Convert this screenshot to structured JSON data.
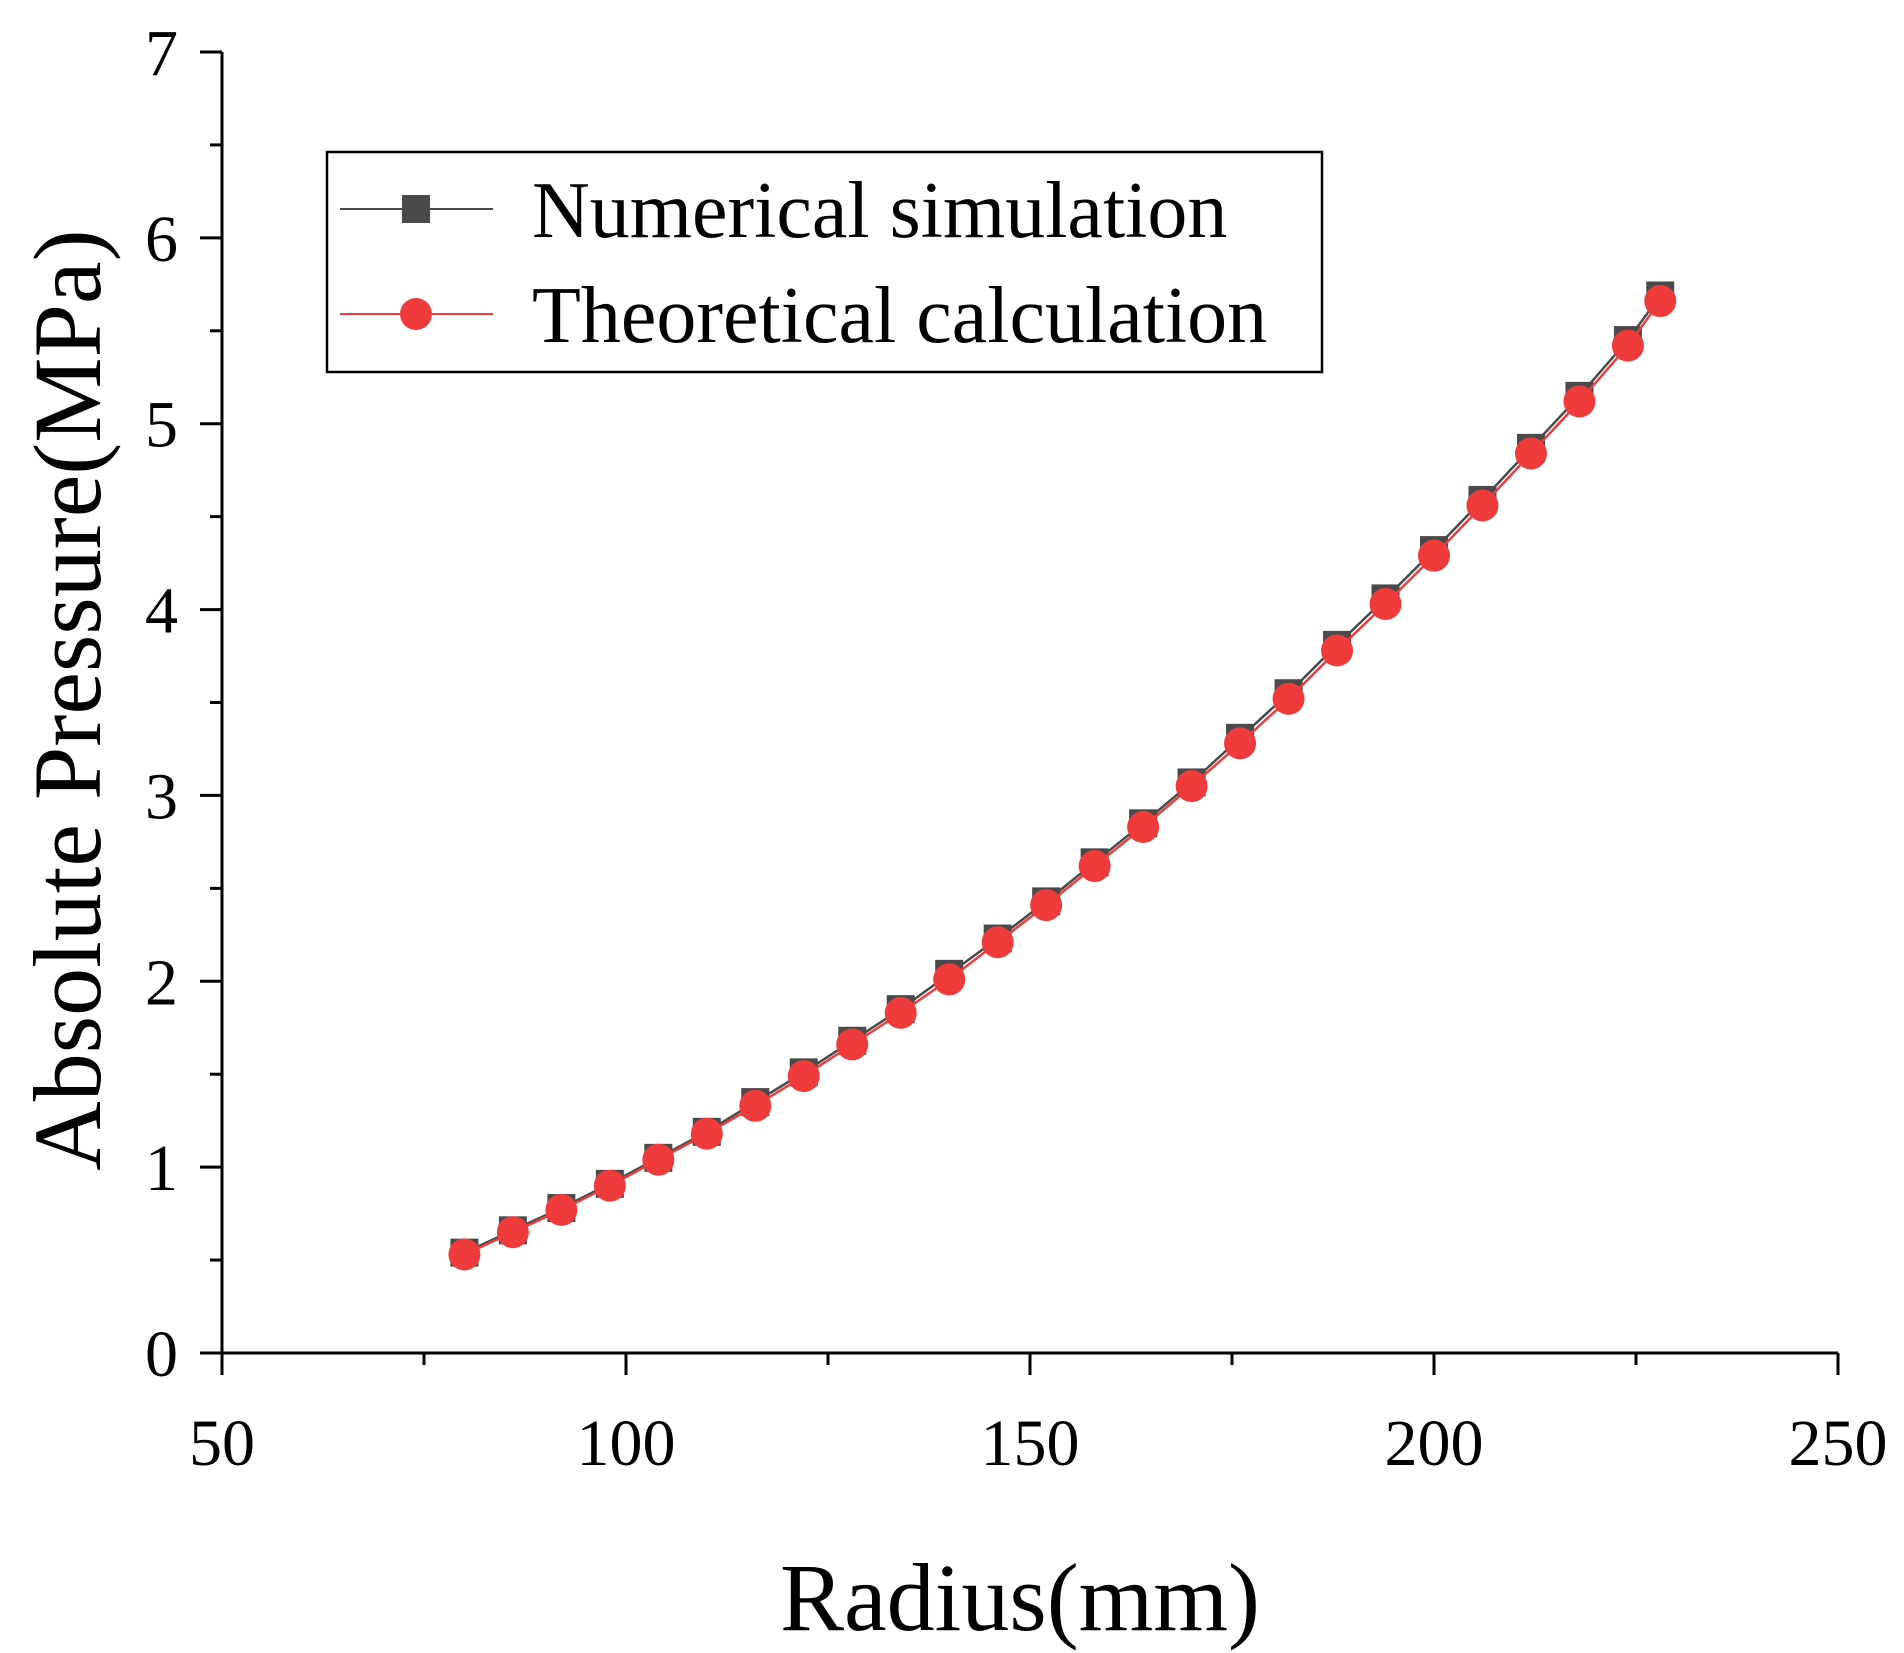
{
  "chart_data": {
    "type": "line",
    "title": "",
    "xlabel": "Radius(mm)",
    "ylabel": "Absolute Pressure(MPa)",
    "xlim": [
      50,
      250
    ],
    "ylim": [
      0,
      7
    ],
    "xticks": [
      "50",
      "100",
      "150",
      "200",
      "250"
    ],
    "yticks": [
      "0",
      "1",
      "2",
      "3",
      "4",
      "5",
      "6",
      "7"
    ],
    "legend_position": "top-left",
    "x": [
      80,
      86,
      92,
      98,
      104,
      110,
      116,
      122,
      128,
      134,
      140,
      146,
      152,
      158,
      164,
      170,
      176,
      182,
      188,
      194,
      200,
      206,
      212,
      218,
      224,
      228
    ],
    "series": [
      {
        "name": "Numerical simulation",
        "color": "#4a4a4a",
        "marker": "square",
        "values": [
          0.54,
          0.66,
          0.78,
          0.91,
          1.05,
          1.19,
          1.35,
          1.51,
          1.68,
          1.85,
          2.04,
          2.23,
          2.43,
          2.64,
          2.85,
          3.07,
          3.31,
          3.55,
          3.81,
          4.06,
          4.32,
          4.59,
          4.87,
          5.15,
          5.45,
          5.69
        ]
      },
      {
        "name": "Theoretical calculation",
        "color": "#ef3b3b",
        "marker": "circle",
        "values": [
          0.53,
          0.65,
          0.77,
          0.9,
          1.04,
          1.18,
          1.33,
          1.49,
          1.66,
          1.83,
          2.01,
          2.21,
          2.41,
          2.62,
          2.83,
          3.05,
          3.28,
          3.52,
          3.78,
          4.03,
          4.29,
          4.56,
          4.84,
          5.12,
          5.42,
          5.66
        ]
      }
    ]
  }
}
